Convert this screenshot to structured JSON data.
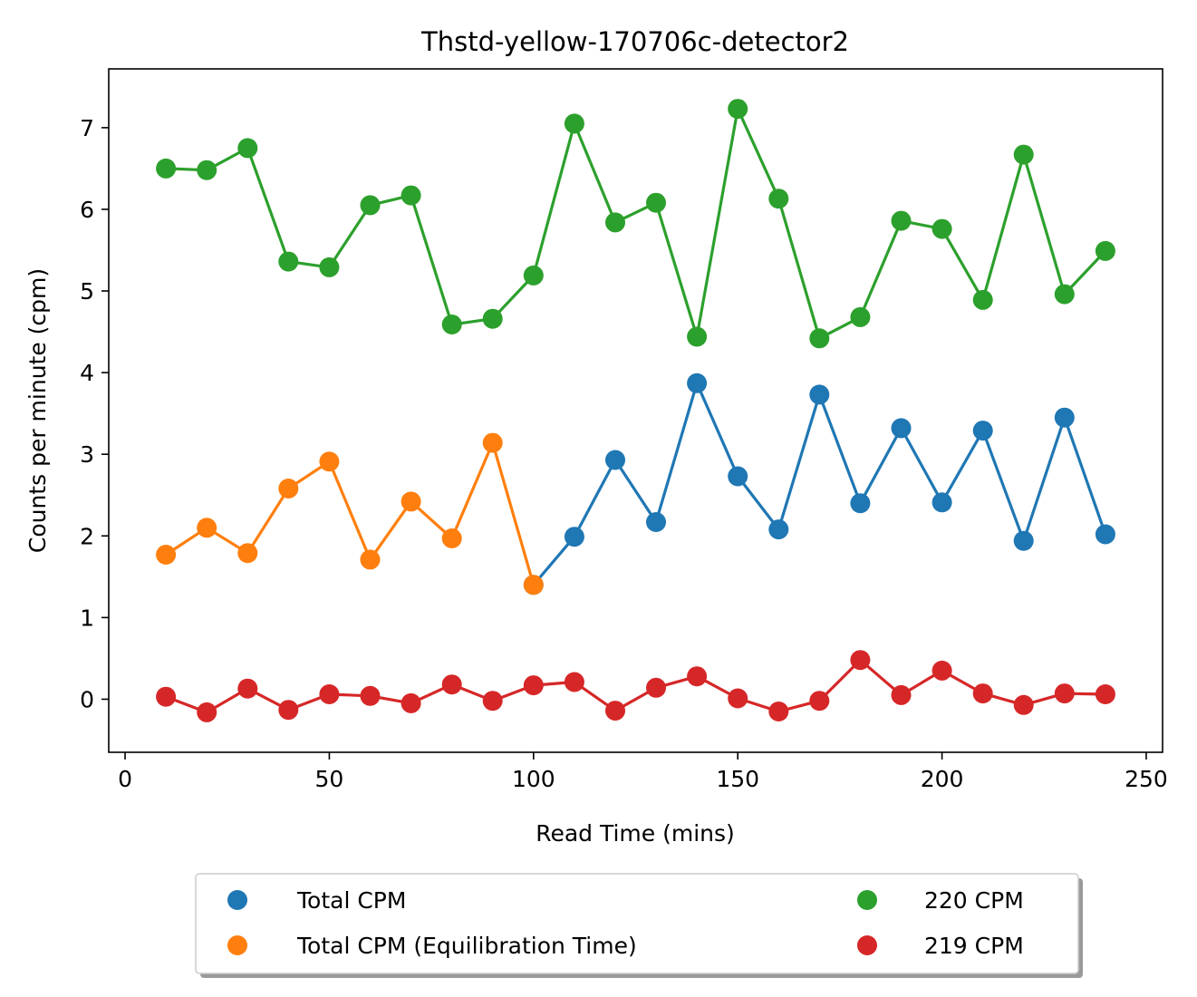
{
  "chart_data": {
    "type": "line",
    "title": "Thstd-yellow-170706c-detector2",
    "xlabel": "Read Time (mins)",
    "ylabel": "Counts per minute (cpm)",
    "xlim": [
      -4,
      254
    ],
    "ylim": [
      -0.65,
      7.72
    ],
    "xticks": [
      0,
      50,
      100,
      150,
      200,
      250
    ],
    "yticks": [
      0,
      1,
      2,
      3,
      4,
      5,
      6,
      7
    ],
    "grid": false,
    "legend_position": "below",
    "series": [
      {
        "name": "Total CPM",
        "color": "#1f77b4",
        "x": [
          100,
          110,
          120,
          130,
          140,
          150,
          160,
          170,
          180,
          190,
          200,
          210,
          220,
          230,
          240
        ],
        "y": [
          1.4,
          1.99,
          2.93,
          2.17,
          3.87,
          2.73,
          2.08,
          3.73,
          2.4,
          3.32,
          2.41,
          3.29,
          1.94,
          3.45,
          2.02
        ]
      },
      {
        "name": "Total CPM (Equilibration Time)",
        "color": "#ff7f0e",
        "x": [
          10,
          20,
          30,
          40,
          50,
          60,
          70,
          80,
          90,
          100
        ],
        "y": [
          1.77,
          2.1,
          1.79,
          2.58,
          2.91,
          1.71,
          2.42,
          1.97,
          3.14,
          1.4
        ]
      },
      {
        "name": "220 CPM",
        "color": "#2ca02c",
        "x": [
          10,
          20,
          30,
          40,
          50,
          60,
          70,
          80,
          90,
          100,
          110,
          120,
          130,
          140,
          150,
          160,
          170,
          180,
          190,
          200,
          210,
          220,
          230,
          240
        ],
        "y": [
          6.5,
          6.48,
          6.75,
          5.36,
          5.29,
          6.05,
          6.17,
          4.59,
          4.66,
          5.19,
          7.05,
          5.84,
          6.08,
          4.44,
          7.23,
          6.13,
          4.42,
          4.68,
          5.86,
          5.76,
          4.89,
          6.67,
          4.96,
          5.49
        ]
      },
      {
        "name": "219 CPM",
        "color": "#d62728",
        "x": [
          10,
          20,
          30,
          40,
          50,
          60,
          70,
          80,
          90,
          100,
          110,
          120,
          130,
          140,
          150,
          160,
          170,
          180,
          190,
          200,
          210,
          220,
          230,
          240
        ],
        "y": [
          0.03,
          -0.16,
          0.13,
          -0.13,
          0.06,
          0.04,
          -0.05,
          0.18,
          -0.02,
          0.17,
          0.21,
          -0.14,
          0.14,
          0.28,
          0.01,
          -0.15,
          -0.02,
          0.48,
          0.05,
          0.35,
          0.07,
          -0.07,
          0.07,
          0.06
        ]
      }
    ],
    "legend": {
      "columns": [
        [
          "Total CPM",
          "Total CPM (Equilibration Time)"
        ],
        [
          "220 CPM",
          "219 CPM"
        ]
      ]
    }
  }
}
